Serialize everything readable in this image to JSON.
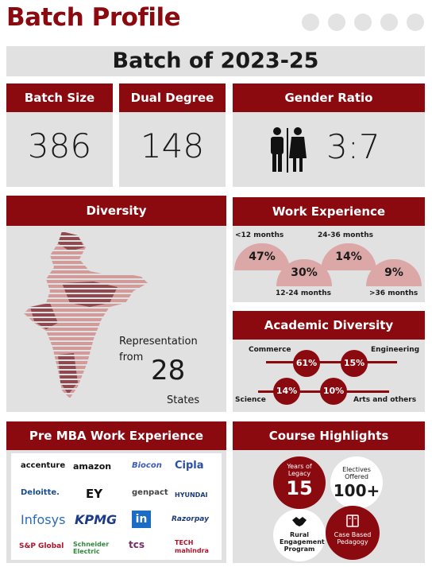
{
  "header": {
    "title": "Batch Profile"
  },
  "batch": {
    "label": "Batch of 2023-25"
  },
  "stats": {
    "batch_size_label": "Batch Size",
    "batch_size_value": "386",
    "dual_degree_label": "Dual Degree",
    "dual_degree_value": "148",
    "gender_ratio_label": "Gender Ratio",
    "gender_ratio_value": "3:7"
  },
  "diversity": {
    "label": "Diversity",
    "rep_text": "Representation",
    "from_text": "from",
    "states_count": "28",
    "states_text": "States"
  },
  "work_experience": {
    "label": "Work Experience",
    "items": [
      {
        "range": "<12 months",
        "pct": "47%"
      },
      {
        "range": "12-24 months",
        "pct": "30%"
      },
      {
        "range": "24-36 months",
        "pct": "14%"
      },
      {
        "range": ">36 months",
        "pct": "9%"
      }
    ]
  },
  "academic": {
    "label": "Academic Diversity",
    "items": [
      {
        "name": "Commerce",
        "pct": "61%"
      },
      {
        "name": "Engineering",
        "pct": "15%"
      },
      {
        "name": "Science",
        "pct": "14%"
      },
      {
        "name": "Arts and others",
        "pct": "10%"
      }
    ]
  },
  "pre_mba": {
    "label": "Pre MBA Work Experience",
    "logos": [
      "accenture",
      "amazon",
      "Biocon",
      "Cipla",
      "Deloitte.",
      "EY",
      "genpact",
      "HYUNDAI",
      "Infosys",
      "KPMG",
      "in",
      "Razorpay",
      "S&P Global",
      "Schneider Electric",
      "tcs",
      "TECH mahindra"
    ]
  },
  "course": {
    "label": "Course Highlights",
    "legacy_label": "Years of Legacy",
    "legacy_value": "15",
    "electives_label": "Electives Offered",
    "electives_value": "100+",
    "rural_label": "Rural Engagement Program",
    "case_label": "Case Based Pedagogy"
  },
  "colors": {
    "accent": "#8b0a10",
    "panel": "#e1e1e2",
    "soft": "#dba7a7"
  }
}
